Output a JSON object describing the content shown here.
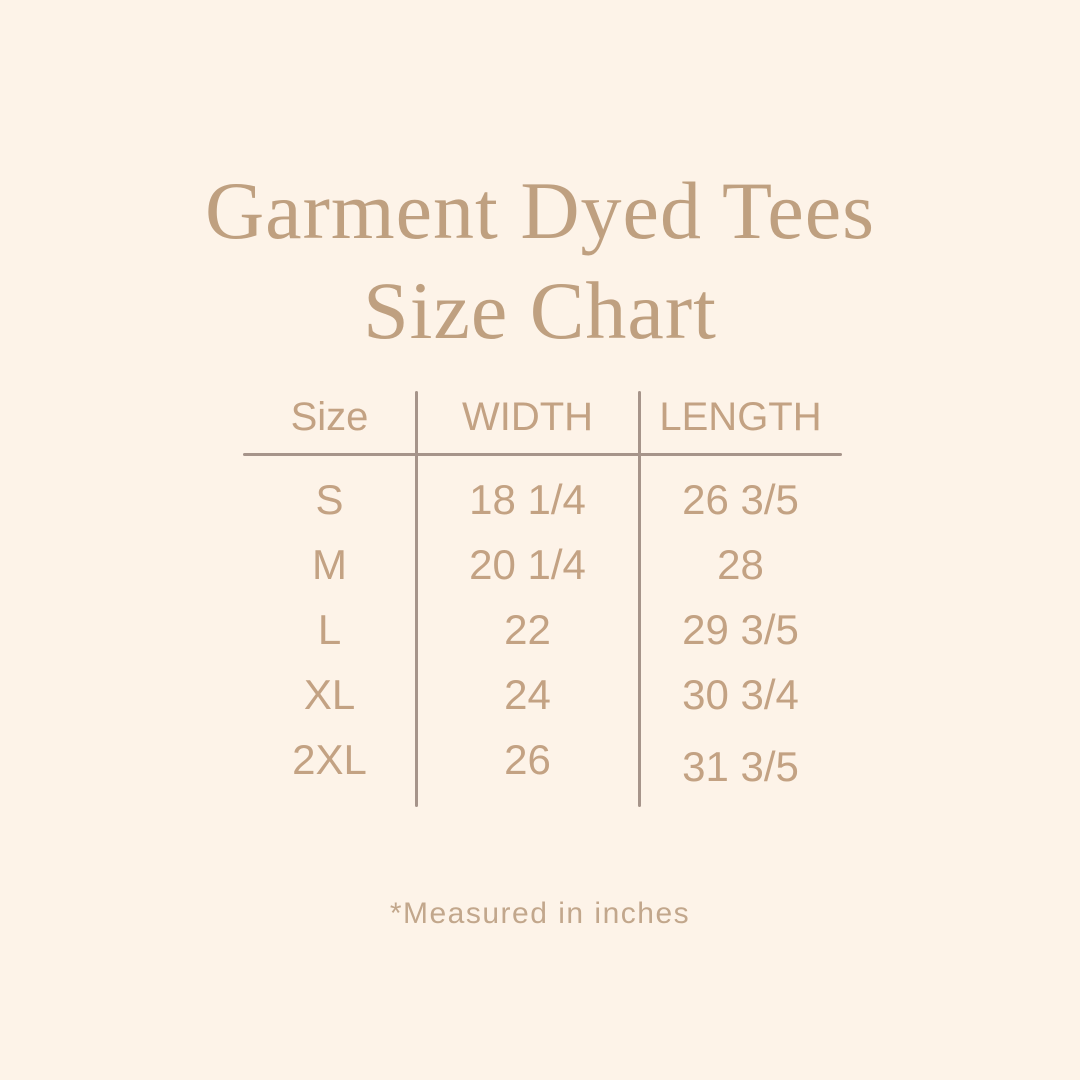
{
  "meta": {
    "background_color": "#fdf3e8",
    "title_color": "#bfa080",
    "table_text_color": "#c3a283",
    "line_color": "#a6948a",
    "footnote_color": "#c2a78c"
  },
  "header": {
    "title_line1": "Garment Dyed Tees",
    "title_line2": "Size Chart"
  },
  "table": {
    "columns": [
      "Size",
      "WIDTH",
      "LENGTH"
    ],
    "rows": [
      {
        "size": "S",
        "width": "18 1/4",
        "length": "26 3/5"
      },
      {
        "size": "M",
        "width": "20 1/4",
        "length": "28"
      },
      {
        "size": "L",
        "width": "22",
        "length": "29 3/5"
      },
      {
        "size": "XL",
        "width": "24",
        "length": "30 3/4"
      },
      {
        "size": "2XL",
        "width": "26",
        "length": "31 3/5"
      }
    ]
  },
  "footnote": "*Measured in inches",
  "chart_data": {
    "type": "table",
    "title": "Garment Dyed Tees Size Chart",
    "columns": [
      "Size",
      "WIDTH",
      "LENGTH"
    ],
    "rows": [
      [
        "S",
        "18 1/4",
        "26 3/5"
      ],
      [
        "M",
        "20 1/4",
        "28"
      ],
      [
        "L",
        "22",
        "29 3/5"
      ],
      [
        "XL",
        "24",
        "30 3/4"
      ],
      [
        "2XL",
        "26",
        "31 3/5"
      ]
    ],
    "units": "inches",
    "note": "*Measured in inches"
  }
}
